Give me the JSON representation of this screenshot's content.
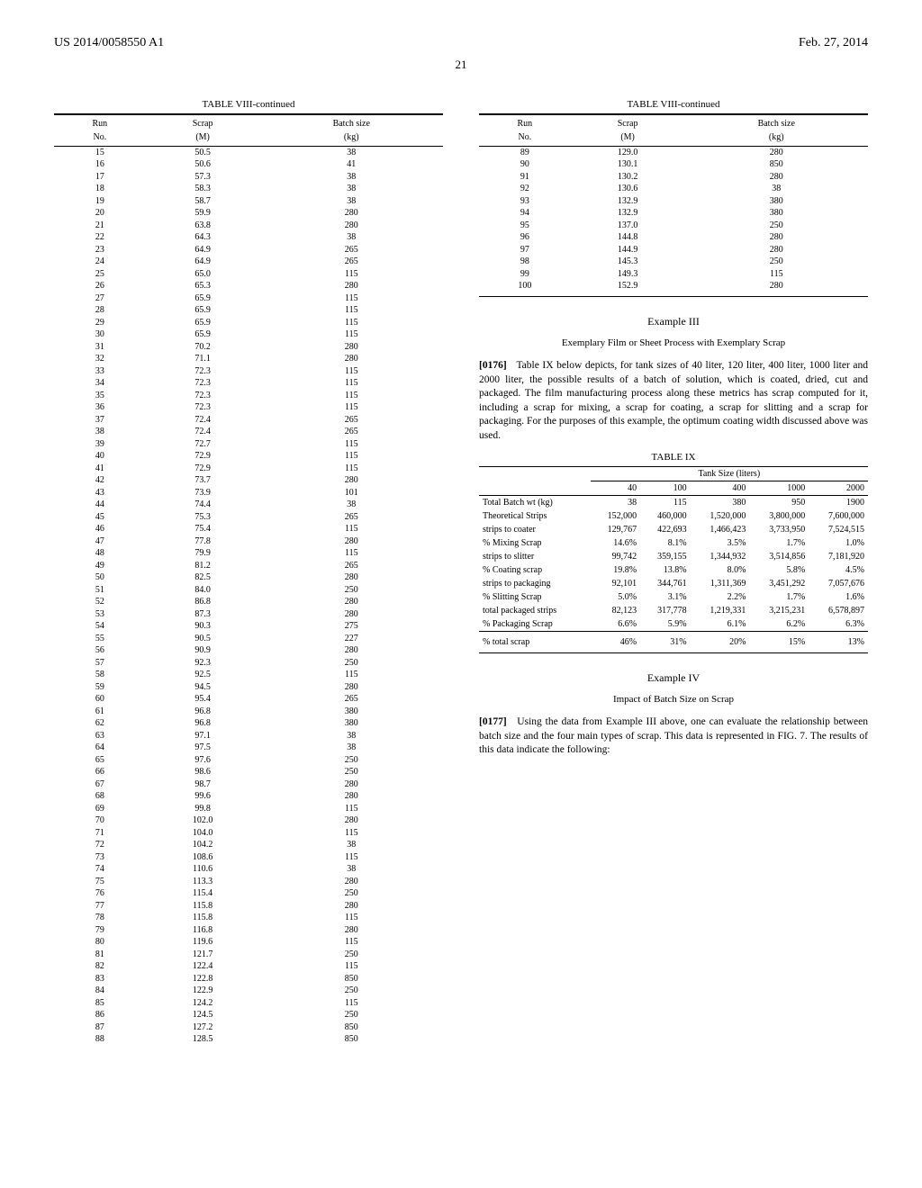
{
  "header": {
    "left": "US 2014/0058550 A1",
    "right": "Feb. 27, 2014",
    "page": "21"
  },
  "table8_left": {
    "caption": "TABLE VIII-continued",
    "h1a": "Run",
    "h1b": "Scrap",
    "h1c": "Batch size",
    "h2a": "No.",
    "h2b": "(M)",
    "h2c": "(kg)",
    "rows": [
      [
        "15",
        "50.5",
        "38"
      ],
      [
        "16",
        "50.6",
        "41"
      ],
      [
        "17",
        "57.3",
        "38"
      ],
      [
        "18",
        "58.3",
        "38"
      ],
      [
        "19",
        "58.7",
        "38"
      ],
      [
        "20",
        "59.9",
        "280"
      ],
      [
        "21",
        "63.8",
        "280"
      ],
      [
        "22",
        "64.3",
        "38"
      ],
      [
        "23",
        "64.9",
        "265"
      ],
      [
        "24",
        "64.9",
        "265"
      ],
      [
        "25",
        "65.0",
        "115"
      ],
      [
        "26",
        "65.3",
        "280"
      ],
      [
        "27",
        "65.9",
        "115"
      ],
      [
        "28",
        "65.9",
        "115"
      ],
      [
        "29",
        "65.9",
        "115"
      ],
      [
        "30",
        "65.9",
        "115"
      ],
      [
        "31",
        "70.2",
        "280"
      ],
      [
        "32",
        "71.1",
        "280"
      ],
      [
        "33",
        "72.3",
        "115"
      ],
      [
        "34",
        "72.3",
        "115"
      ],
      [
        "35",
        "72.3",
        "115"
      ],
      [
        "36",
        "72.3",
        "115"
      ],
      [
        "37",
        "72.4",
        "265"
      ],
      [
        "38",
        "72.4",
        "265"
      ],
      [
        "39",
        "72.7",
        "115"
      ],
      [
        "40",
        "72.9",
        "115"
      ],
      [
        "41",
        "72.9",
        "115"
      ],
      [
        "42",
        "73.7",
        "280"
      ],
      [
        "43",
        "73.9",
        "101"
      ],
      [
        "44",
        "74.4",
        "38"
      ],
      [
        "45",
        "75.3",
        "265"
      ],
      [
        "46",
        "75.4",
        "115"
      ],
      [
        "47",
        "77.8",
        "280"
      ],
      [
        "48",
        "79.9",
        "115"
      ],
      [
        "49",
        "81.2",
        "265"
      ],
      [
        "50",
        "82.5",
        "280"
      ],
      [
        "51",
        "84.0",
        "250"
      ],
      [
        "52",
        "86.8",
        "280"
      ],
      [
        "53",
        "87.3",
        "280"
      ],
      [
        "54",
        "90.3",
        "275"
      ],
      [
        "55",
        "90.5",
        "227"
      ],
      [
        "56",
        "90.9",
        "280"
      ],
      [
        "57",
        "92.3",
        "250"
      ],
      [
        "58",
        "92.5",
        "115"
      ],
      [
        "59",
        "94.5",
        "280"
      ],
      [
        "60",
        "95.4",
        "265"
      ],
      [
        "61",
        "96.8",
        "380"
      ],
      [
        "62",
        "96.8",
        "380"
      ],
      [
        "63",
        "97.1",
        "38"
      ],
      [
        "64",
        "97.5",
        "38"
      ],
      [
        "65",
        "97.6",
        "250"
      ],
      [
        "66",
        "98.6",
        "250"
      ],
      [
        "67",
        "98.7",
        "280"
      ],
      [
        "68",
        "99.6",
        "280"
      ],
      [
        "69",
        "99.8",
        "115"
      ],
      [
        "70",
        "102.0",
        "280"
      ],
      [
        "71",
        "104.0",
        "115"
      ],
      [
        "72",
        "104.2",
        "38"
      ],
      [
        "73",
        "108.6",
        "115"
      ],
      [
        "74",
        "110.6",
        "38"
      ],
      [
        "75",
        "113.3",
        "280"
      ],
      [
        "76",
        "115.4",
        "250"
      ],
      [
        "77",
        "115.8",
        "280"
      ],
      [
        "78",
        "115.8",
        "115"
      ],
      [
        "79",
        "116.8",
        "280"
      ],
      [
        "80",
        "119.6",
        "115"
      ],
      [
        "81",
        "121.7",
        "250"
      ],
      [
        "82",
        "122.4",
        "115"
      ],
      [
        "83",
        "122.8",
        "850"
      ],
      [
        "84",
        "122.9",
        "250"
      ],
      [
        "85",
        "124.2",
        "115"
      ],
      [
        "86",
        "124.5",
        "250"
      ],
      [
        "87",
        "127.2",
        "850"
      ],
      [
        "88",
        "128.5",
        "850"
      ]
    ]
  },
  "table8_right": {
    "caption": "TABLE VIII-continued",
    "h1a": "Run",
    "h1b": "Scrap",
    "h1c": "Batch size",
    "h2a": "No.",
    "h2b": "(M)",
    "h2c": "(kg)",
    "rows": [
      [
        "89",
        "129.0",
        "280"
      ],
      [
        "90",
        "130.1",
        "850"
      ],
      [
        "91",
        "130.2",
        "280"
      ],
      [
        "92",
        "130.6",
        "38"
      ],
      [
        "93",
        "132.9",
        "380"
      ],
      [
        "94",
        "132.9",
        "380"
      ],
      [
        "95",
        "137.0",
        "250"
      ],
      [
        "96",
        "144.8",
        "280"
      ],
      [
        "97",
        "144.9",
        "280"
      ],
      [
        "98",
        "145.3",
        "250"
      ],
      [
        "99",
        "149.3",
        "115"
      ],
      [
        "100",
        "152.9",
        "280"
      ]
    ]
  },
  "example3": {
    "title": "Example III",
    "subtitle": "Exemplary Film or Sheet Process with Exemplary Scrap",
    "paraNum": "[0176]",
    "paraText": "Table IX below depicts, for tank sizes of 40 liter, 120 liter, 400 liter, 1000 liter and 2000 liter, the possible results of a batch of solution, which is coated, dried, cut and packaged. The film manufacturing process along these metrics has scrap computed for it, including a scrap for mixing, a scrap for coating, a scrap for slitting and a scrap for packaging. For the purposes of this example, the optimum coating width discussed above was used."
  },
  "table9": {
    "caption": "TABLE IX",
    "spanHeader": "Tank Size (liters)",
    "cols": [
      "",
      "40",
      "100",
      "400",
      "1000",
      "2000"
    ],
    "rows": [
      [
        "Total Batch wt (kg)",
        "38",
        "115",
        "380",
        "950",
        "1900"
      ],
      [
        "Theoretical Strips",
        "152,000",
        "460,000",
        "1,520,000",
        "3,800,000",
        "7,600,000"
      ],
      [
        "strips to coater",
        "129,767",
        "422,693",
        "1,466,423",
        "3,733,950",
        "7,524,515"
      ],
      [
        "% Mixing Scrap",
        "14.6%",
        "8.1%",
        "3.5%",
        "1.7%",
        "1.0%"
      ],
      [
        "strips to slitter",
        "99,742",
        "359,155",
        "1,344,932",
        "3,514,856",
        "7,181,920"
      ],
      [
        "% Coating scrap",
        "19.8%",
        "13.8%",
        "8.0%",
        "5.8%",
        "4.5%"
      ],
      [
        "strips to packaging",
        "92,101",
        "344,761",
        "1,311,369",
        "3,451,292",
        "7,057,676"
      ],
      [
        "% Slitting Scrap",
        "5.0%",
        "3.1%",
        "2.2%",
        "1.7%",
        "1.6%"
      ],
      [
        "total packaged strips",
        "82,123",
        "317,778",
        "1,219,331",
        "3,215,231",
        "6,578,897"
      ],
      [
        "% Packaging Scrap",
        "6.6%",
        "5.9%",
        "6.1%",
        "6.2%",
        "6.3%"
      ]
    ],
    "footer": [
      "% total scrap",
      "46%",
      "31%",
      "20%",
      "15%",
      "13%"
    ]
  },
  "example4": {
    "title": "Example IV",
    "subtitle": "Impact of Batch Size on Scrap",
    "paraNum": "[0177]",
    "paraText": "Using the data from Example III above, one can evaluate the relationship between batch size and the four main types of scrap. This data is represented in FIG. 7. The results of this data indicate the following:"
  }
}
